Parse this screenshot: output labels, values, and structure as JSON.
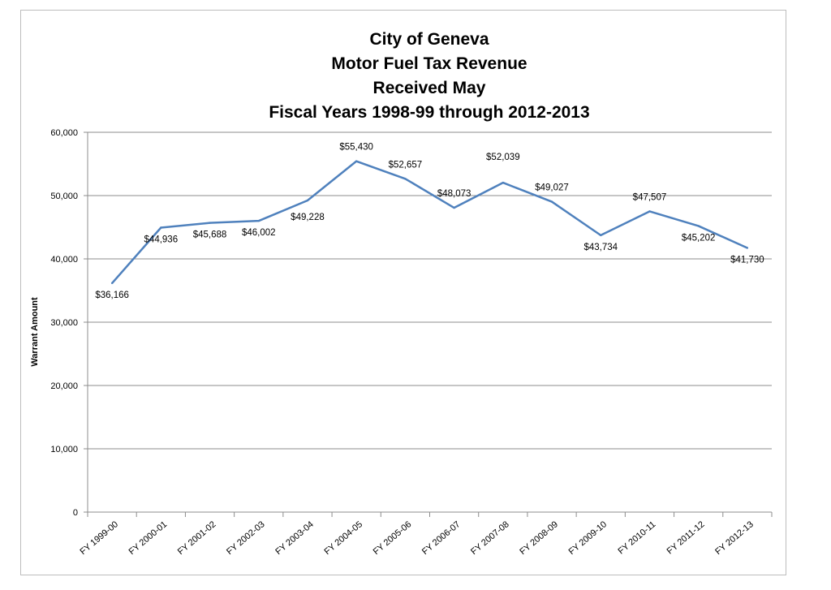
{
  "chart_data": {
    "type": "line",
    "title_lines": [
      "City of Geneva",
      "Motor Fuel Tax Revenue",
      "Received May",
      "Fiscal Years 1998-99 through 2012-2013"
    ],
    "xlabel": "",
    "ylabel": "Warrant Amount",
    "ylim": [
      0,
      60000
    ],
    "y_ticks": [
      0,
      10000,
      20000,
      30000,
      40000,
      50000,
      60000
    ],
    "y_tick_labels": [
      "0",
      "10,000",
      "20,000",
      "30,000",
      "40,000",
      "50,000",
      "60,000"
    ],
    "grid": true,
    "legend": "none",
    "categories": [
      "FY 1999-00",
      "FY 2000-01",
      "FY 2001-02",
      "FY 2002-03",
      "FY 2003-04",
      "FY 2004-05",
      "FY 2005-06",
      "FY 2006-07",
      "FY 2007-08",
      "FY 2008-09",
      "FY 2009-10",
      "FY 2010-11",
      "FY 2011-12",
      "FY 2012-13"
    ],
    "series": [
      {
        "values": [
          36166,
          44936,
          45688,
          46002,
          49228,
          55430,
          52657,
          48073,
          52039,
          49027,
          43734,
          47507,
          45202,
          41730
        ],
        "data_labels": [
          "$36,166",
          "$44,936",
          "$45,688",
          "$46,002",
          "$49,228",
          "$55,430",
          "$52,657",
          "$48,073",
          "$52,039",
          "$49,027",
          "$43,734",
          "$47,507",
          "$45,202",
          "$41,730"
        ],
        "color": "#4f81bd"
      }
    ]
  }
}
